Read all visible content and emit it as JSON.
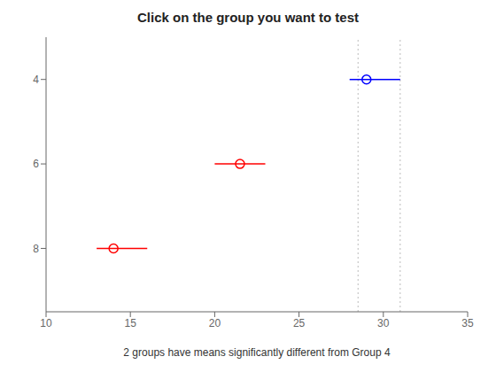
{
  "chart_data": {
    "type": "scatter",
    "title": "Click on the group you want to test",
    "xlabel": "2 groups have means significantly different from Group 4",
    "xlim": [
      10,
      35
    ],
    "xticks": [
      10,
      15,
      20,
      25,
      30,
      35
    ],
    "ylim": [
      9.5,
      3.0
    ],
    "yticks": [
      4,
      6,
      8
    ],
    "grid": false,
    "marker": "circle",
    "x": [
      29.0,
      21.5,
      14.0
    ],
    "y": [
      4,
      6,
      8
    ],
    "ci_low": [
      28.0,
      20.0,
      13.0
    ],
    "ci_high": [
      31.0,
      23.0,
      16.0
    ],
    "colors": [
      "#0000ff",
      "#ff0000",
      "#ff0000"
    ],
    "reference_lines": {
      "values": [
        28.5,
        31.0
      ],
      "color": "#bbbbbb",
      "line_style": "dotted"
    }
  }
}
